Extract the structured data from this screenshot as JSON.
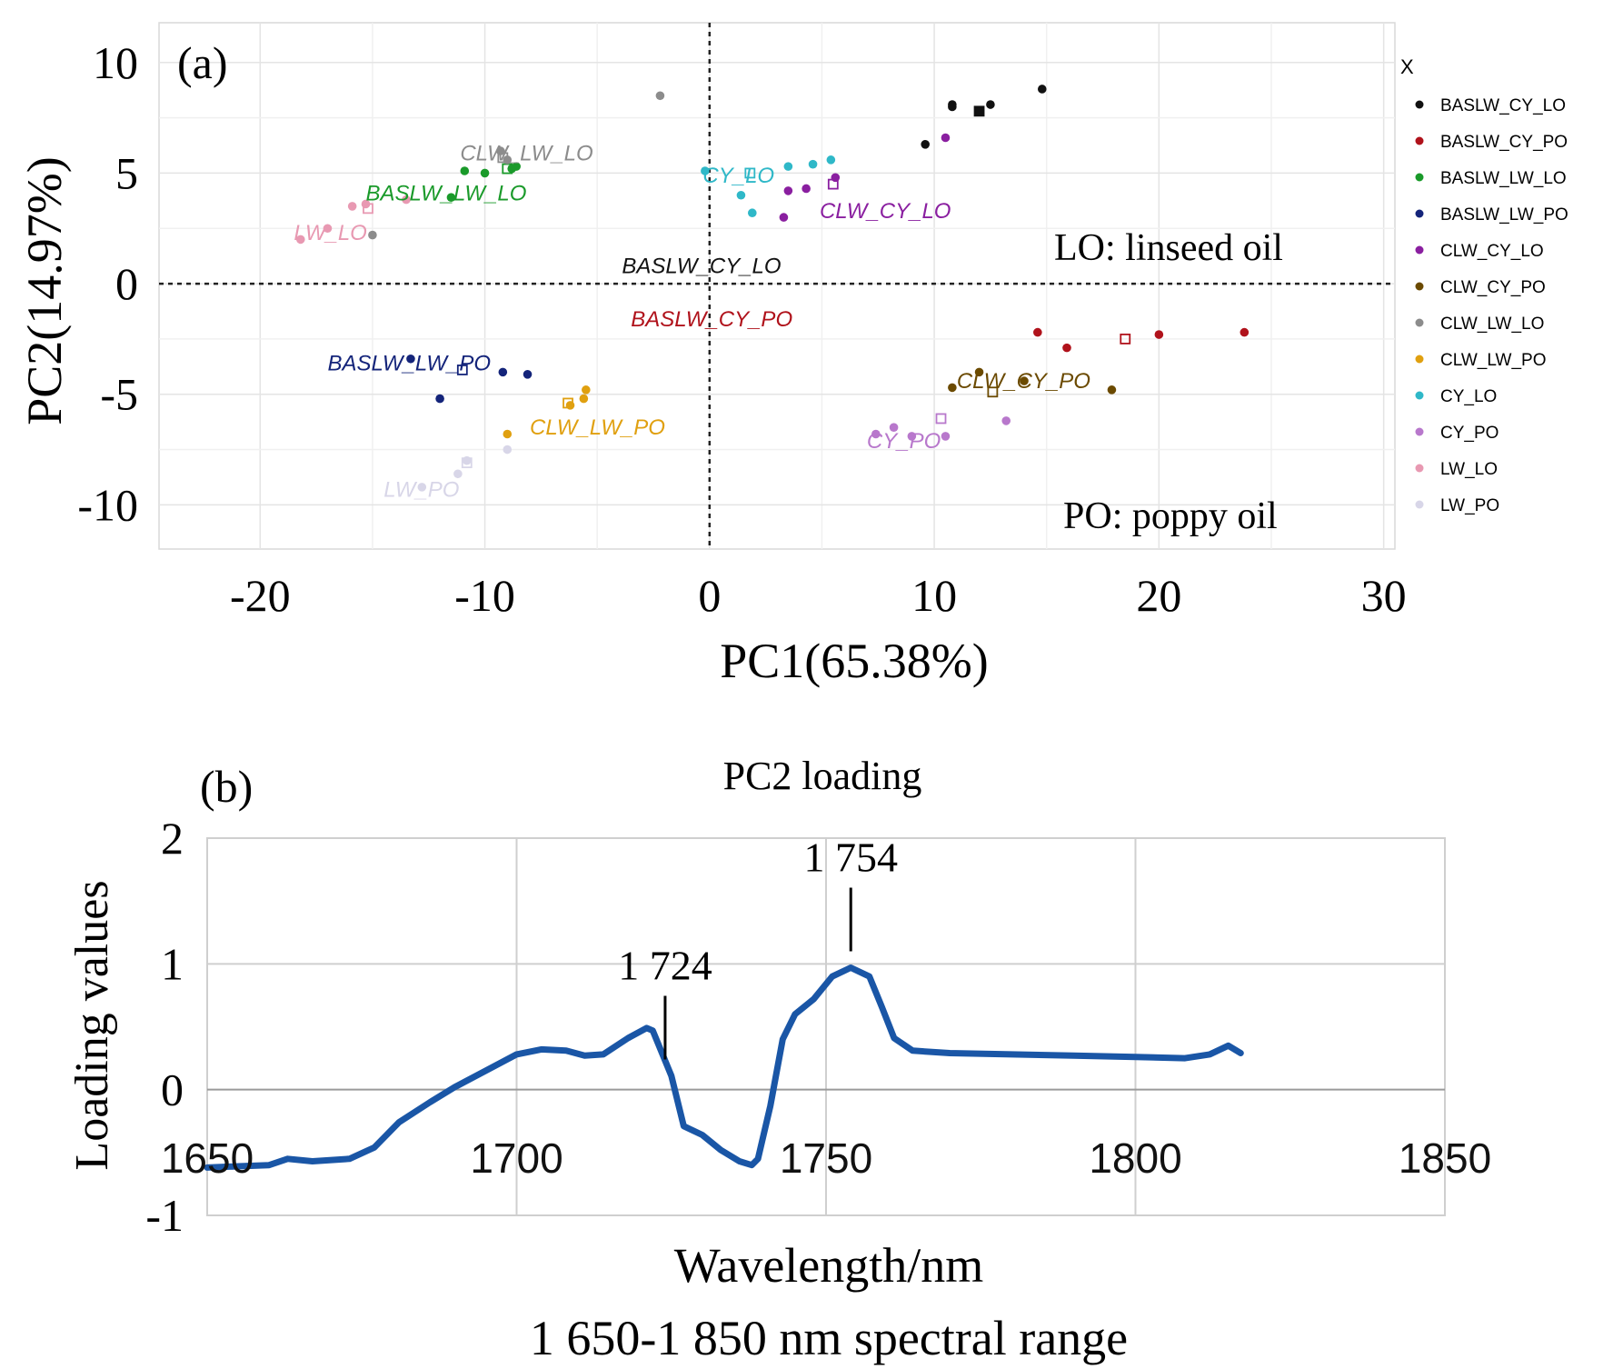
{
  "chart_data": [
    {
      "type": "scatter",
      "panel_label": "(a)",
      "xlabel": "PC1(65.38%)",
      "ylabel": "PC2(14.97%)",
      "xlim": [
        -24.5,
        30.5
      ],
      "ylim": [
        -12,
        11.8
      ],
      "x_ticks": [
        -20,
        -10,
        0,
        10,
        20,
        30
      ],
      "y_ticks": [
        10,
        5,
        0,
        -5,
        -10
      ],
      "grid": true,
      "reference_lines": {
        "x": 0,
        "y": 0,
        "style": "dotted"
      },
      "annotations": [
        "LO: linseed oil",
        "PO: poppy oil"
      ],
      "legend": {
        "title": "X",
        "placement": "right"
      },
      "series": [
        {
          "name": "BASLW_CY_LO",
          "color": "#111111",
          "label": "BASLW_CY_LO",
          "points": [
            [
              9.6,
              6.3
            ],
            [
              10.8,
              8.1
            ],
            [
              12.5,
              8.1
            ],
            [
              14.8,
              8.8
            ],
            [
              10.8,
              8.0
            ]
          ],
          "centroid": [
            12.0,
            7.8
          ]
        },
        {
          "name": "BASLW_CY_PO",
          "color": "#b0121b",
          "label": "BASLW_CY_PO",
          "points": [
            [
              14.6,
              -2.2
            ],
            [
              15.9,
              -2.9
            ],
            [
              20.0,
              -2.3
            ],
            [
              23.8,
              -2.2
            ]
          ],
          "centroid": [
            18.5,
            -2.5
          ]
        },
        {
          "name": "BASLW_LW_LO",
          "color": "#1a9a2a",
          "label": "BASLW_LW_LO",
          "points": [
            [
              -10.9,
              5.1
            ],
            [
              -10.0,
              5.0
            ],
            [
              -8.8,
              5.2
            ],
            [
              -8.6,
              5.3
            ],
            [
              -11.5,
              3.9
            ]
          ],
          "centroid": [
            -9.0,
            5.2
          ]
        },
        {
          "name": "BASLW_LW_PO",
          "color": "#14247a",
          "label": "BASLW_LW_PO",
          "points": [
            [
              -12.0,
              -5.2
            ],
            [
              -9.2,
              -4.0
            ],
            [
              -8.1,
              -4.1
            ],
            [
              -13.3,
              -3.4
            ]
          ],
          "centroid": [
            -11.0,
            -3.9
          ]
        },
        {
          "name": "CLW_CY_LO",
          "color": "#8a1fa0",
          "label": "CLW_CY_LO",
          "points": [
            [
              3.3,
              3.0
            ],
            [
              3.5,
              4.2
            ],
            [
              4.3,
              4.3
            ],
            [
              5.6,
              4.8
            ],
            [
              10.5,
              6.6
            ]
          ],
          "centroid": [
            5.5,
            4.5
          ]
        },
        {
          "name": "CLW_CY_PO",
          "color": "#6b4a00",
          "label": "CLW_CY_PO",
          "points": [
            [
              10.8,
              -4.7
            ],
            [
              12.0,
              -4.0
            ],
            [
              14.0,
              -4.4
            ],
            [
              17.9,
              -4.8
            ]
          ],
          "centroid": [
            12.6,
            -4.9
          ]
        },
        {
          "name": "CLW_LW_LO",
          "color": "#8c8c8c",
          "label": "CLW_LW_LO",
          "points": [
            [
              -2.2,
              8.5
            ],
            [
              -9.3,
              6.0
            ],
            [
              -9.0,
              5.6
            ],
            [
              -15.0,
              2.2
            ]
          ],
          "centroid": [
            -9.2,
            5.7
          ]
        },
        {
          "name": "CLW_LW_PO",
          "color": "#e0a010",
          "label": "CLW_LW_PO",
          "points": [
            [
              -5.5,
              -4.8
            ],
            [
              -5.6,
              -5.2
            ],
            [
              -6.2,
              -5.5
            ],
            [
              -9.0,
              -6.8
            ]
          ],
          "centroid": [
            -6.3,
            -5.4
          ]
        },
        {
          "name": "CY_LO",
          "color": "#2fb8c8",
          "label": "CY_LO",
          "points": [
            [
              1.4,
              4.0
            ],
            [
              1.9,
              3.2
            ],
            [
              3.5,
              5.3
            ],
            [
              4.6,
              5.4
            ],
            [
              5.4,
              5.6
            ],
            [
              -0.2,
              5.1
            ]
          ],
          "centroid": [
            1.8,
            5.0
          ]
        },
        {
          "name": "CY_PO",
          "color": "#b878cc",
          "label": "CY_PO",
          "points": [
            [
              8.2,
              -6.5
            ],
            [
              9.0,
              -6.9
            ],
            [
              10.5,
              -6.9
            ],
            [
              13.2,
              -6.2
            ],
            [
              7.4,
              -6.8
            ]
          ],
          "centroid": [
            10.3,
            -6.1
          ]
        },
        {
          "name": "LW_LO",
          "color": "#e899b2",
          "label": "LW_LO",
          "points": [
            [
              -18.2,
              2.0
            ],
            [
              -15.9,
              3.5
            ],
            [
              -15.3,
              3.6
            ],
            [
              -13.5,
              3.8
            ],
            [
              -17.0,
              2.5
            ]
          ],
          "centroid": [
            -15.2,
            3.4
          ]
        },
        {
          "name": "LW_PO",
          "color": "#d8d6e8",
          "label": "LW_PO",
          "points": [
            [
              -10.8,
              -8.0
            ],
            [
              -9.0,
              -7.5
            ],
            [
              -12.8,
              -9.2
            ],
            [
              -11.2,
              -8.6
            ]
          ],
          "centroid": [
            -10.8,
            -8.1
          ]
        }
      ]
    },
    {
      "type": "line",
      "panel_label": "(b)",
      "title": "PC2 loading",
      "xlabel": "Wavelength/nm",
      "ylabel": "Loading values",
      "caption": "1 650-1 850 nm spectral range",
      "xlim": [
        1650,
        1850
      ],
      "ylim": [
        -1,
        2
      ],
      "x_ticks": [
        1650,
        1700,
        1750,
        1800,
        1850
      ],
      "y_ticks": [
        2,
        1,
        0,
        -1
      ],
      "grid": true,
      "line_color": "#1a56a6",
      "peaks": [
        {
          "x": 1724,
          "label": "1 724"
        },
        {
          "x": 1754,
          "label": "1 754"
        }
      ],
      "x": [
        1650,
        1655,
        1660,
        1663,
        1667,
        1673,
        1677,
        1681,
        1686,
        1690,
        1695,
        1700,
        1704,
        1708,
        1711,
        1714,
        1718,
        1721,
        1722,
        1725,
        1727,
        1730,
        1733,
        1736,
        1738,
        1739,
        1741,
        1743,
        1745,
        1748,
        1751,
        1754,
        1757,
        1759,
        1761,
        1764,
        1770,
        1780,
        1790,
        1800,
        1808,
        1812,
        1815,
        1817
      ],
      "y": [
        -0.62,
        -0.61,
        -0.6,
        -0.55,
        -0.57,
        -0.55,
        -0.46,
        -0.26,
        -0.1,
        0.02,
        0.15,
        0.28,
        0.32,
        0.31,
        0.27,
        0.28,
        0.41,
        0.49,
        0.47,
        0.11,
        -0.29,
        -0.36,
        -0.48,
        -0.57,
        -0.6,
        -0.55,
        -0.13,
        0.4,
        0.6,
        0.72,
        0.9,
        0.97,
        0.9,
        0.66,
        0.41,
        0.31,
        0.29,
        0.28,
        0.27,
        0.26,
        0.25,
        0.28,
        0.35,
        0.29
      ]
    }
  ]
}
